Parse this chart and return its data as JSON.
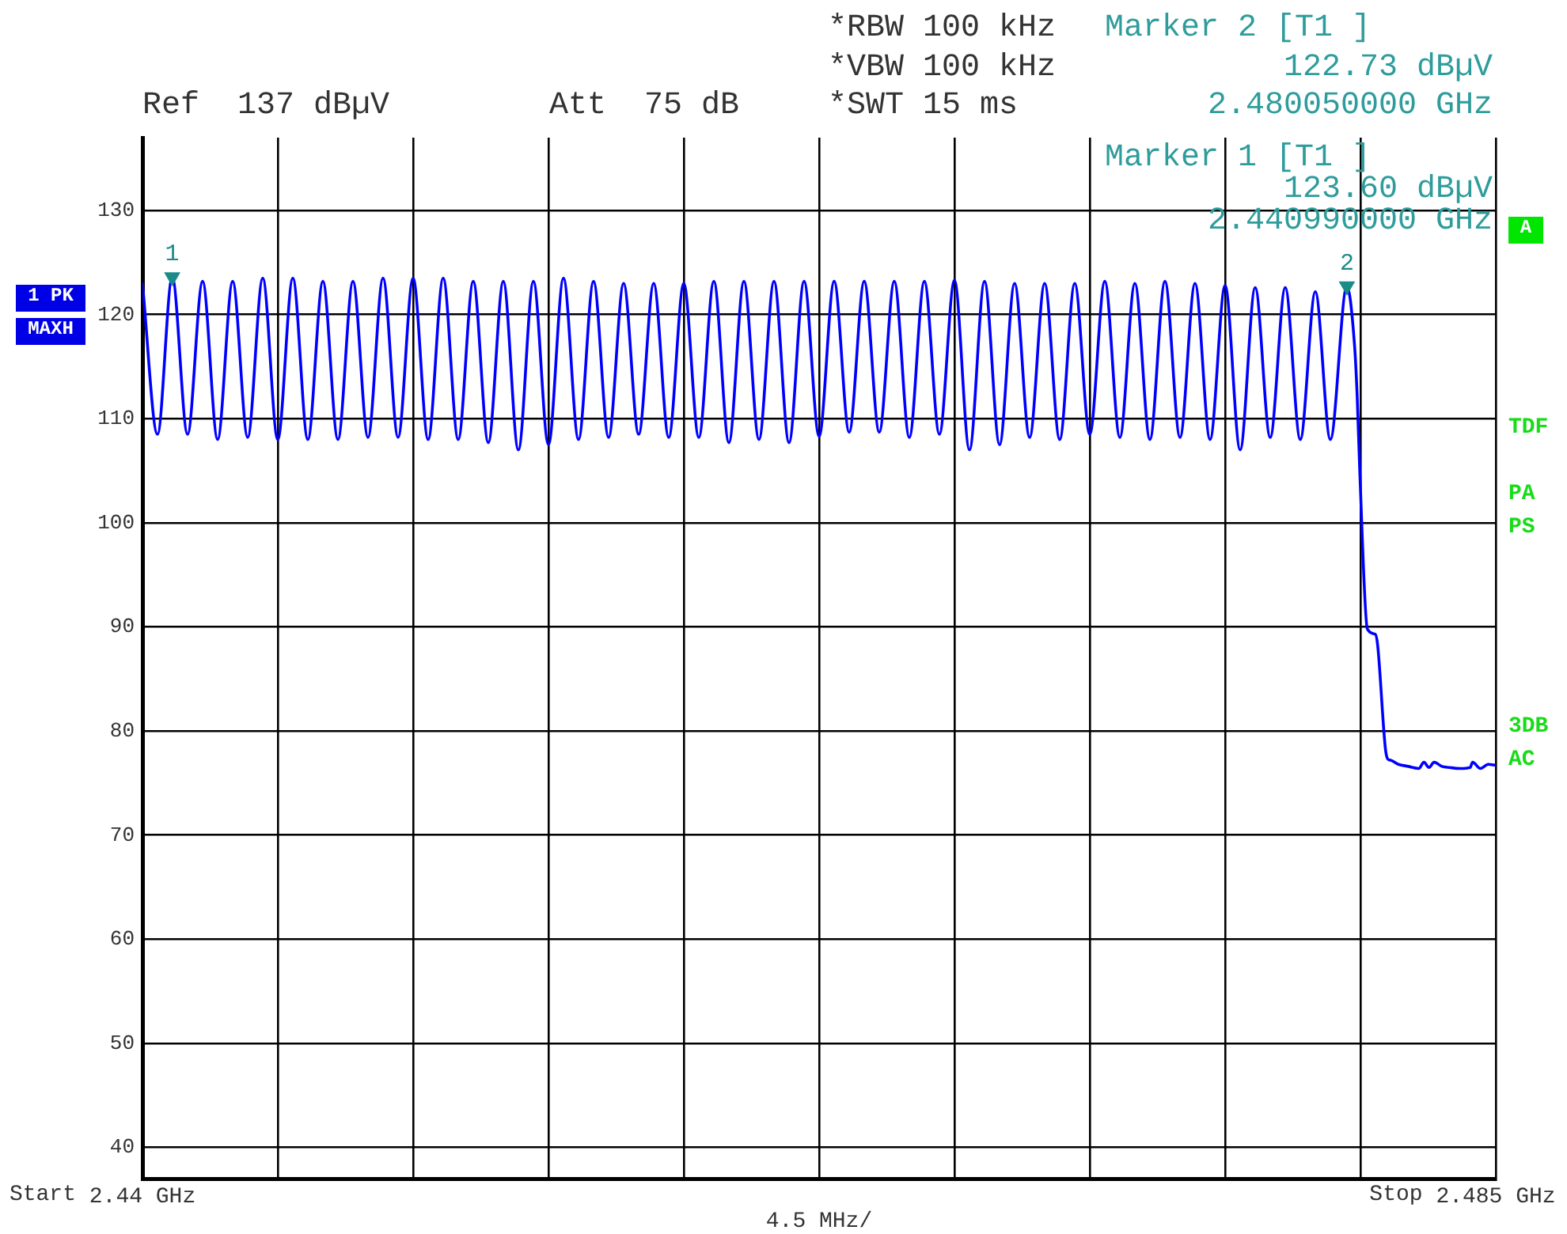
{
  "chart_data": {
    "type": "line",
    "series": [
      {
        "color": "#0000ff",
        "x": [
          2.44,
          2.4405,
          2.44099,
          2.4415,
          2.442,
          2.4425,
          2.443,
          2.4435,
          2.444,
          2.4445,
          2.445,
          2.4455,
          2.446,
          2.4465,
          2.447,
          2.4475,
          2.448,
          2.4485,
          2.449,
          2.4495,
          2.45,
          2.4505,
          2.451,
          2.4515,
          2.452,
          2.4525,
          2.453,
          2.4535,
          2.454,
          2.4545,
          2.455,
          2.4555,
          2.456,
          2.4565,
          2.457,
          2.4575,
          2.458,
          2.4585,
          2.459,
          2.4595,
          2.46,
          2.4605,
          2.461,
          2.4615,
          2.462,
          2.4625,
          2.463,
          2.4635,
          2.464,
          2.4645,
          2.465,
          2.4655,
          2.466,
          2.4665,
          2.467,
          2.4675,
          2.468,
          2.4685,
          2.469,
          2.4695,
          2.47,
          2.4705,
          2.471,
          2.4715,
          2.472,
          2.4725,
          2.473,
          2.4735,
          2.474,
          2.4745,
          2.475,
          2.4755,
          2.476,
          2.4765,
          2.477,
          2.4775,
          2.478,
          2.4785,
          2.479,
          2.4795,
          2.48005,
          2.4803,
          2.48039,
          2.48048,
          2.48073,
          2.48099,
          2.48107,
          2.48133,
          2.48141,
          2.4815,
          2.48176,
          2.4821,
          2.48244,
          2.48261,
          2.48278,
          2.48295,
          2.48321,
          2.48346,
          2.48381,
          2.48415,
          2.48423,
          2.48449,
          2.48475,
          2.485
        ],
        "values": [
          123.0,
          108.5,
          123.6,
          108.5,
          123.2,
          108.0,
          123.2,
          108.2,
          123.5,
          108.0,
          123.5,
          108.0,
          123.2,
          108.0,
          123.2,
          108.2,
          123.5,
          108.2,
          123.5,
          108.0,
          123.5,
          108.0,
          123.2,
          107.7,
          123.2,
          107.0,
          123.2,
          107.5,
          123.5,
          108.0,
          123.2,
          108.2,
          123.0,
          108.5,
          123.0,
          108.2,
          123.0,
          108.2,
          123.2,
          107.7,
          123.2,
          108.0,
          123.2,
          107.7,
          123.2,
          108.3,
          123.2,
          108.7,
          123.2,
          108.7,
          123.2,
          108.2,
          123.2,
          108.5,
          123.3,
          107.0,
          123.2,
          107.5,
          123.0,
          108.2,
          123.0,
          108.0,
          123.0,
          108.5,
          123.2,
          108.2,
          123.0,
          108.0,
          123.2,
          108.2,
          123.0,
          108.0,
          122.8,
          107.0,
          122.6,
          108.2,
          122.6,
          108.0,
          122.2,
          108.0,
          122.73,
          117.2,
          112.3,
          104.8,
          89.8,
          89.3,
          88.3,
          78.3,
          77.3,
          77.2,
          76.8,
          76.6,
          76.4,
          77.0,
          76.5,
          77.0,
          76.6,
          76.5,
          76.4,
          76.5,
          77.0,
          76.4,
          76.8,
          76.7
        ]
      },
      {
        "type": "scatter",
        "color": "#1a8a8a",
        "marker": "triangle",
        "x": [
          2.44099,
          2.48005
        ],
        "values": [
          123.6,
          122.73
        ]
      }
    ],
    "xlabel": "4.5 MHz/",
    "xlim": [
      2.44,
      2.485
    ],
    "xticks": [
      {
        "value": 2.44,
        "label": "2.44 GHz"
      },
      {
        "value": 2.4445,
        "label": null
      },
      {
        "value": 2.449,
        "label": null
      },
      {
        "value": 2.4535,
        "label": null
      },
      {
        "value": 2.458,
        "label": null
      },
      {
        "value": 2.4625,
        "label": null
      },
      {
        "value": 2.467,
        "label": null
      },
      {
        "value": 2.4715,
        "label": null
      },
      {
        "value": 2.476,
        "label": null
      },
      {
        "value": 2.4805,
        "label": null
      },
      {
        "value": 2.485,
        "label": "2.485 GHz"
      }
    ],
    "ylim": [
      37,
      137
    ],
    "yticks": [
      40,
      50,
      60,
      70,
      80,
      90,
      100,
      110,
      120,
      130
    ],
    "grid": true,
    "annotations": [
      "Ref  137 dBµV",
      "Att  75 dB",
      "*RBW 100 kHz",
      "*VBW 100 kHz",
      "*SWT 15 ms",
      "Marker 2 [T1 ]",
      "122.73 dBµV",
      "2.480050000 GHz",
      "Marker 1 [T1 ]",
      "123.60 dBµV",
      "2.440990000 GHz",
      "1 PK",
      "MAXH",
      "A",
      "TDF",
      "PA",
      "PS",
      "3DB",
      "AC",
      "Start",
      "Stop",
      {
        "text": "1",
        "x": 2.44099,
        "y": 123.6
      },
      {
        "text": "2",
        "x": 2.48005,
        "y": 122.73
      }
    ]
  }
}
